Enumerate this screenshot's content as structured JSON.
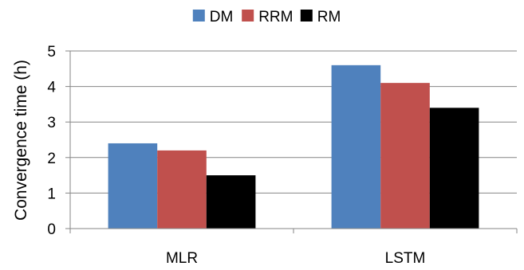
{
  "chart_data": {
    "type": "bar",
    "title": "",
    "xlabel": "",
    "ylabel": "Convergence time (h)",
    "categories": [
      "MLR",
      "LSTM"
    ],
    "series": [
      {
        "name": "DM",
        "color": "#4f81bd",
        "values": [
          2.4,
          4.6
        ]
      },
      {
        "name": "RRM",
        "color": "#c0504d",
        "values": [
          2.2,
          4.1
        ]
      },
      {
        "name": "RM",
        "color": "#000000",
        "values": [
          1.5,
          3.4
        ]
      }
    ],
    "ylim": [
      0,
      5
    ],
    "yticks": [
      0,
      1,
      2,
      3,
      4,
      5
    ],
    "grid": true,
    "legend_position": "top"
  }
}
